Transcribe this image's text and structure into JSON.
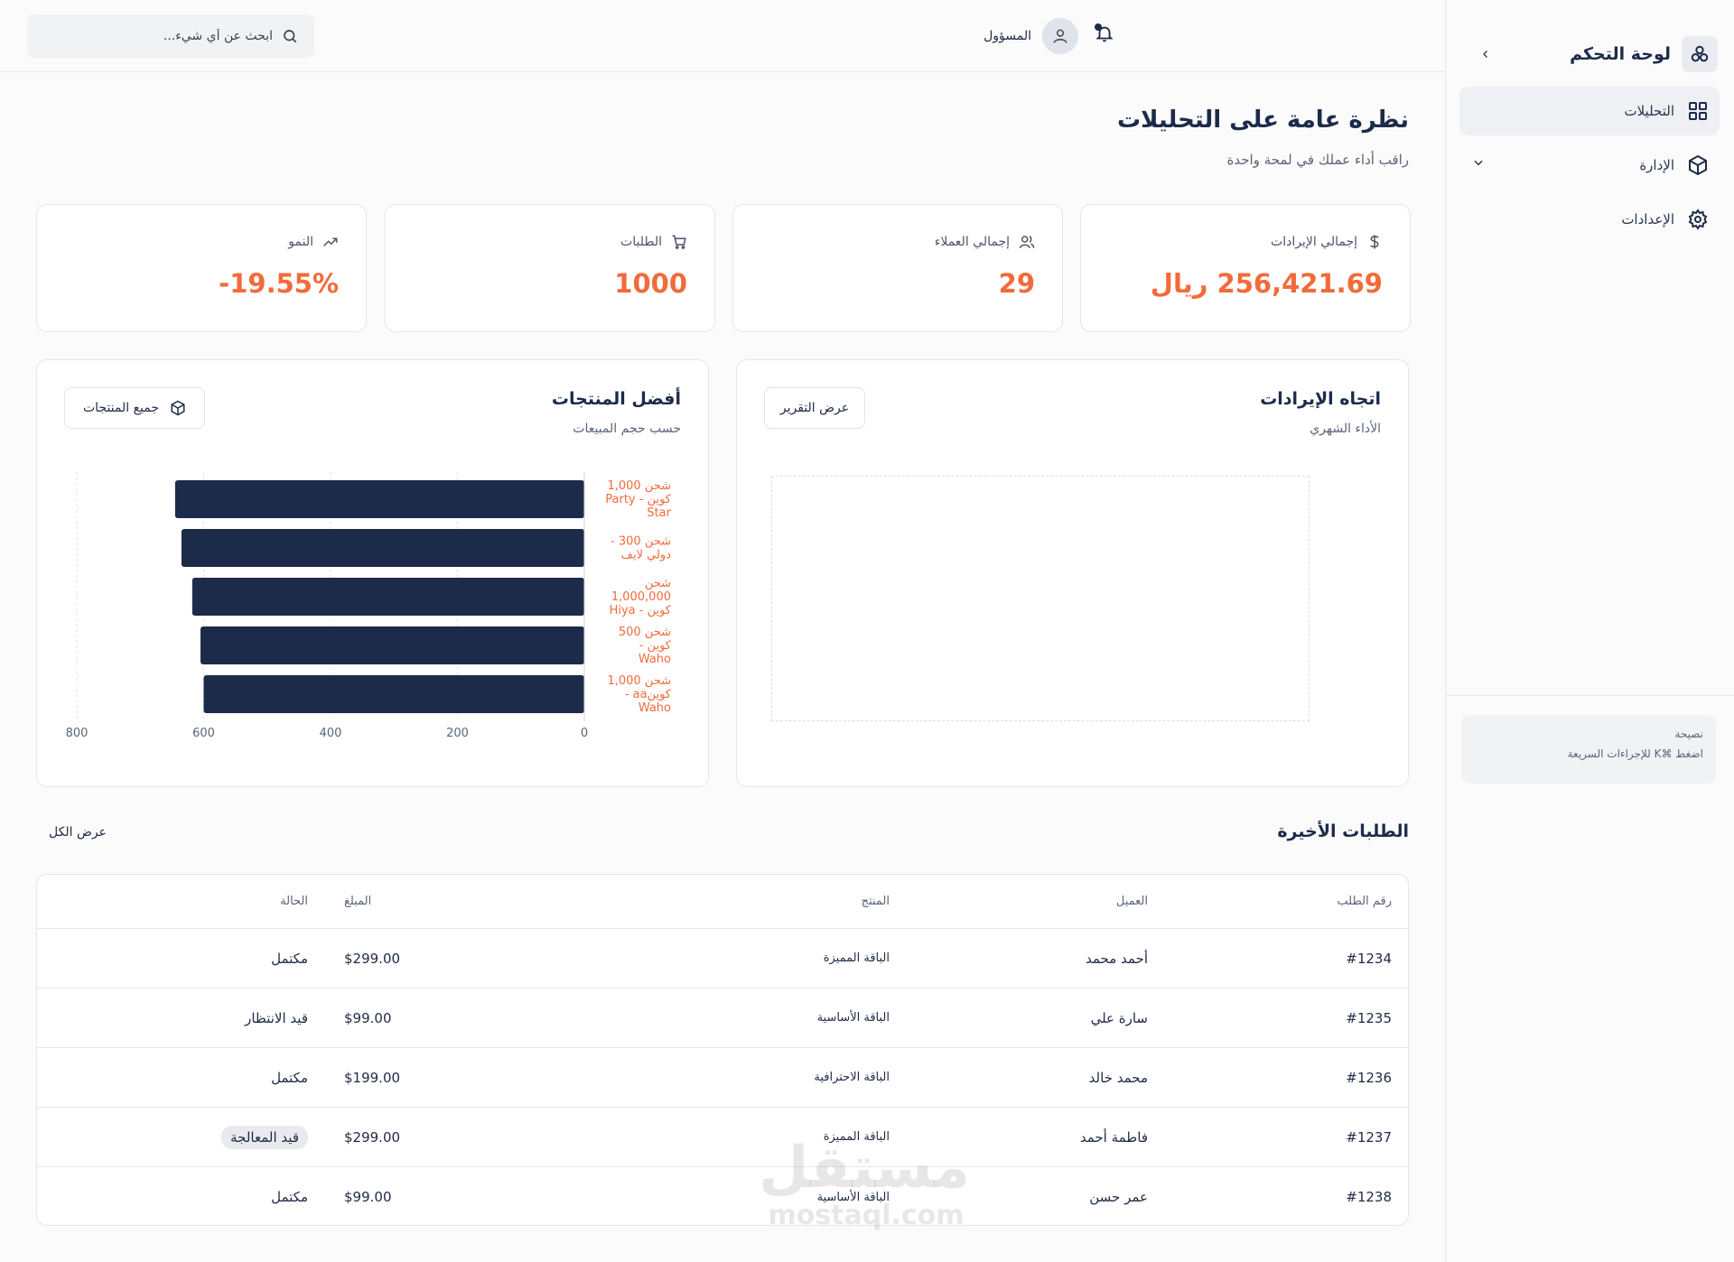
{
  "sidebar": {
    "brand_title": "لوحة التحكم",
    "items": [
      {
        "label": "التحليلات",
        "icon": "grid-icon",
        "active": true
      },
      {
        "label": "الإدارة",
        "icon": "box-icon",
        "expandable": true
      },
      {
        "label": "الإعدادات",
        "icon": "gear-icon"
      }
    ],
    "tip_title": "نصيحة",
    "tip_text": "اضغط ⌘K للإجراءات السريعة"
  },
  "header": {
    "search_placeholder": "ابحث عن أي شيء...",
    "user_name": "المسؤول"
  },
  "page": {
    "title": "نظرة عامة على التحليلات",
    "subtitle": "راقب أداء عملك في لمحة واحدة"
  },
  "kpis": [
    {
      "label": "إجمالي الإيرادات",
      "value": "256,421.69 ريال",
      "icon": "dollar-icon"
    },
    {
      "label": "إجمالي العملاء",
      "value": "29",
      "icon": "users-icon"
    },
    {
      "label": "الطلبات",
      "value": "1000",
      "icon": "cart-icon"
    },
    {
      "label": "النمو",
      "value": "-19.55%",
      "icon": "trend-icon"
    }
  ],
  "revenue_card": {
    "title": "اتجاه الإيرادات",
    "subtitle": "الأداء الشهري",
    "button_label": "عرض التقرير"
  },
  "products_card": {
    "title": "أفضل المنتجات",
    "subtitle": "حسب حجم المبيعات",
    "button_label": "جميع المنتجات"
  },
  "chart_data": {
    "type": "bar",
    "orientation": "horizontal",
    "categories": [
      [
        "شحن 1,000",
        "كوين - Party",
        "Star"
      ],
      [
        "شحن 300 -",
        "دولي لايف"
      ],
      [
        "شحن",
        "1,000,000",
        "كوين - Hiya"
      ],
      [
        "شحن 500",
        "كوين -",
        "Waho"
      ],
      [
        "شحن 1,000",
        "كوينaa -",
        "Waho"
      ]
    ],
    "values": [
      645,
      635,
      618,
      605,
      600
    ],
    "xticks": [
      0,
      200,
      400,
      600,
      800
    ],
    "xlim": [
      0,
      800
    ],
    "grid": true,
    "bar_color": "#1c2b4a",
    "label_color": "#f26b3a"
  },
  "orders": {
    "title": "الطلبات الأخيرة",
    "view_all": "عرض الكل",
    "columns": [
      "رقم الطلب",
      "العميل",
      "المنتج",
      "المبلغ",
      "الحالة"
    ],
    "rows": [
      {
        "id": "#1234",
        "customer": "أحمد محمد",
        "product": "الباقة المميزة",
        "amount": "$299.00",
        "status": "مكتمل",
        "pill": false
      },
      {
        "id": "#1235",
        "customer": "سارة علي",
        "product": "الباقة الأساسية",
        "amount": "$99.00",
        "status": "قيد الانتظار",
        "pill": false
      },
      {
        "id": "#1236",
        "customer": "محمد خالد",
        "product": "الباقة الاحترافية",
        "amount": "$199.00",
        "status": "مكتمل",
        "pill": false
      },
      {
        "id": "#1237",
        "customer": "فاطمة أحمد",
        "product": "الباقة المميزة",
        "amount": "$299.00",
        "status": "قيد المعالجة",
        "pill": true
      },
      {
        "id": "#1238",
        "customer": "عمر حسن",
        "product": "الباقة الأساسية",
        "amount": "$99.00",
        "status": "مكتمل",
        "pill": false
      }
    ]
  },
  "watermark": {
    "line1": "مستقل",
    "line2": "mostaql.com"
  },
  "colors": {
    "accent": "#f26b3a",
    "navy": "#1c2b4a"
  }
}
